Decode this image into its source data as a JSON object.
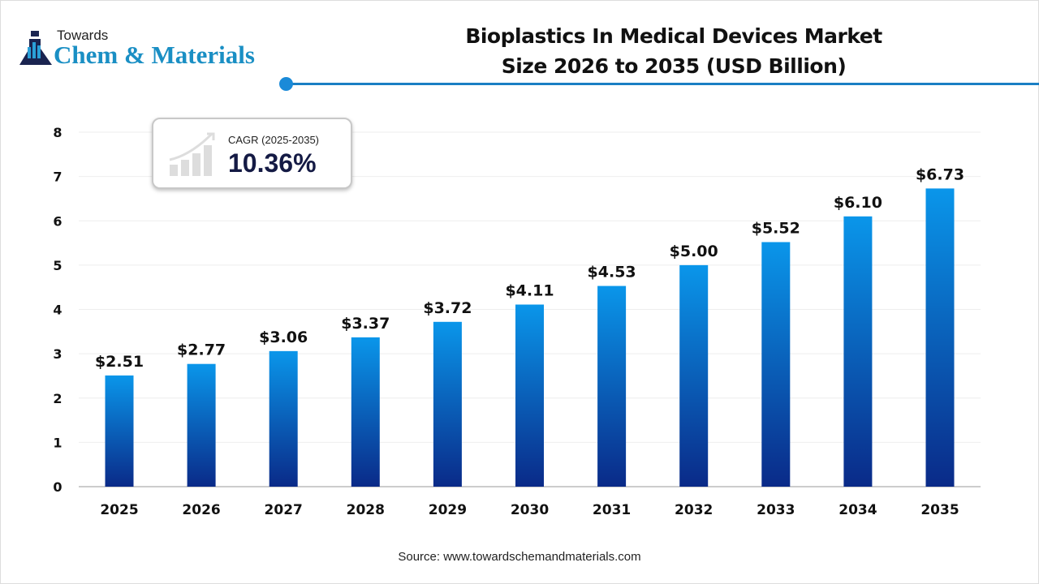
{
  "logo": {
    "line1": "Towards",
    "line2": "Chem & Materials"
  },
  "title_line1": "Bioplastics In Medical Devices Market",
  "title_line2": "Size 2026 to 2035 (USD Billion)",
  "cagr": {
    "label": "CAGR (2025-2035)",
    "value": "10.36%"
  },
  "source": "Source: www.towardschemandmaterials.com",
  "colors": {
    "bar_top": "#0a96ea",
    "bar_bottom": "#0a2a88",
    "accent": "#1a7fc4"
  },
  "chart_data": {
    "type": "bar",
    "categories": [
      "2025",
      "2026",
      "2027",
      "2028",
      "2029",
      "2030",
      "2031",
      "2032",
      "2033",
      "2034",
      "2035"
    ],
    "values": [
      2.51,
      2.77,
      3.06,
      3.37,
      3.72,
      4.11,
      4.53,
      5.0,
      5.52,
      6.1,
      6.73
    ],
    "data_labels": [
      "$2.51",
      "$2.77",
      "$3.06",
      "$3.37",
      "$3.72",
      "$4.11",
      "$4.53",
      "$5.00",
      "$5.52",
      "$6.10",
      "$6.73"
    ],
    "ylim": [
      0,
      8
    ],
    "yticks": [
      0,
      1,
      2,
      3,
      4,
      5,
      6,
      7,
      8
    ],
    "grid": true
  }
}
